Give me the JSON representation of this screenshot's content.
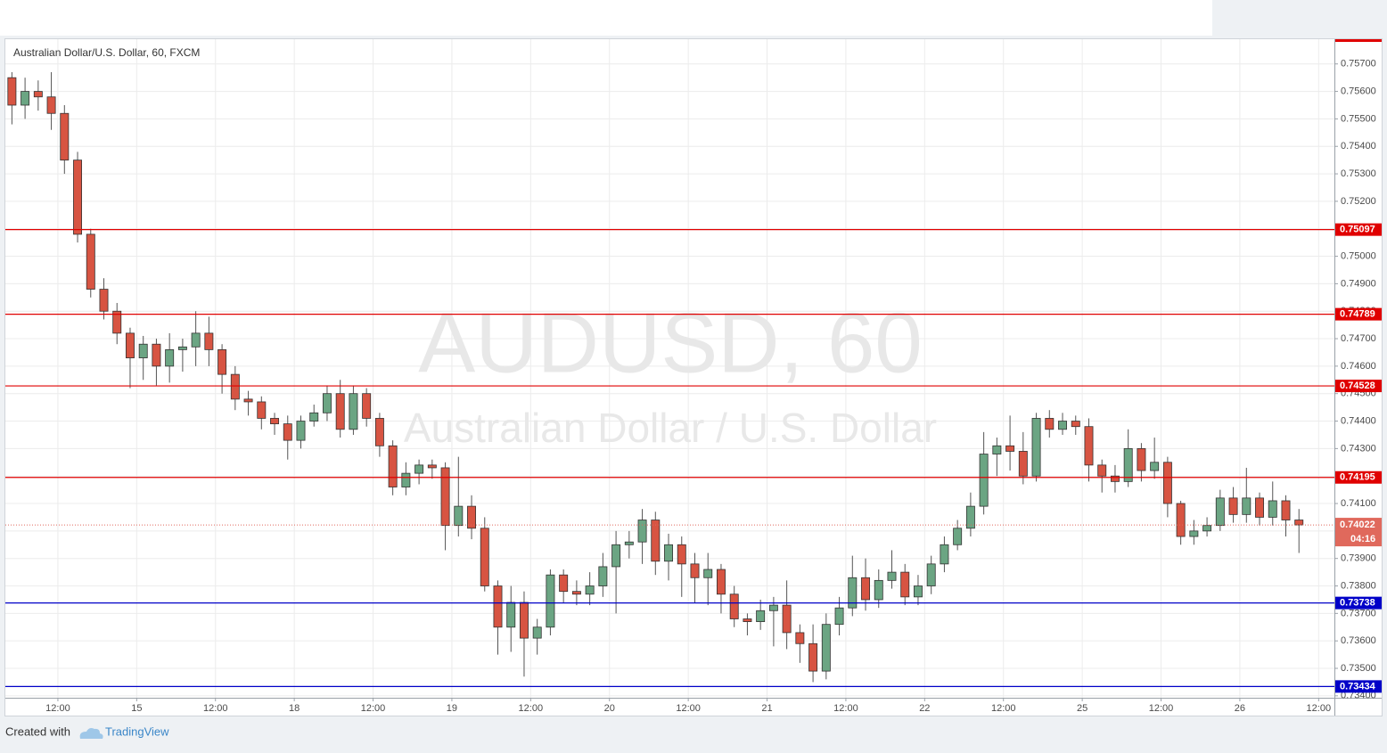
{
  "chart_data": {
    "type": "candlestick",
    "title": "Australian Dollar/U.S. Dollar, 60, FXCM",
    "watermark": "AUDUSD, 60",
    "watermark_subtitle": "Australian Dollar / U.S. Dollar",
    "x": [
      -7,
      -5,
      -3,
      -1,
      1,
      3,
      5,
      7,
      9,
      11,
      13,
      15,
      17,
      19,
      21,
      23,
      25,
      27,
      29,
      31,
      33,
      35,
      37,
      39,
      41,
      43,
      45,
      47,
      49,
      51,
      53,
      55,
      57,
      59,
      61,
      63,
      65,
      67,
      69,
      71,
      73,
      75,
      77,
      79,
      81,
      83,
      85,
      87,
      89,
      91,
      93,
      95,
      97,
      99,
      101,
      103,
      105,
      107,
      109,
      111,
      113,
      115,
      117,
      119,
      121,
      123,
      125,
      127,
      129,
      131,
      133,
      135,
      137,
      139,
      141,
      143,
      145,
      147,
      149,
      151,
      153,
      155,
      157,
      159,
      161,
      163,
      165,
      167,
      169,
      171,
      173,
      175,
      177,
      179,
      181,
      183,
      185,
      187,
      189
    ],
    "open": [
      0.7565,
      0.7555,
      0.756,
      0.7558,
      0.7552,
      0.7535,
      0.7508,
      0.7488,
      0.748,
      0.7472,
      0.7463,
      0.7468,
      0.746,
      0.7466,
      0.7467,
      0.7472,
      0.7466,
      0.7457,
      0.7448,
      0.7447,
      0.7441,
      0.7439,
      0.7433,
      0.744,
      0.7443,
      0.745,
      0.7437,
      0.745,
      0.7441,
      0.7431,
      0.7416,
      0.7421,
      0.7424,
      0.7423,
      0.7402,
      0.7409,
      0.7401,
      0.738,
      0.7365,
      0.7374,
      0.7361,
      0.7365,
      0.7384,
      0.7378,
      0.7377,
      0.738,
      0.7387,
      0.7395,
      0.7396,
      0.7404,
      0.7389,
      0.7395,
      0.7388,
      0.7383,
      0.7386,
      0.7377,
      0.7368,
      0.7367,
      0.7371,
      0.7373,
      0.7363,
      0.7359,
      0.7349,
      0.7366,
      0.7372,
      0.7383,
      0.7375,
      0.7382,
      0.7385,
      0.7376,
      0.738,
      0.7388,
      0.7395,
      0.7401,
      0.7409,
      0.7428,
      0.7431,
      0.7429,
      0.742,
      0.7441,
      0.7437,
      0.744,
      0.7438,
      0.7424,
      0.742,
      0.7418,
      0.743,
      0.7422,
      0.7425,
      0.741,
      0.7398,
      0.74,
      0.7402,
      0.7412,
      0.7406,
      0.7412,
      0.7405,
      0.7411,
      0.7404
    ],
    "high": [
      0.7567,
      0.7565,
      0.7564,
      0.7567,
      0.7555,
      0.7538,
      0.751,
      0.7492,
      0.7483,
      0.7474,
      0.7471,
      0.747,
      0.7472,
      0.747,
      0.748,
      0.7478,
      0.7468,
      0.746,
      0.7451,
      0.7449,
      0.7443,
      0.7442,
      0.7442,
      0.7446,
      0.7453,
      0.7455,
      0.7453,
      0.7452,
      0.7443,
      0.7433,
      0.7425,
      0.7426,
      0.7426,
      0.7425,
      0.7427,
      0.7413,
      0.7405,
      0.7382,
      0.738,
      0.7378,
      0.7368,
      0.7386,
      0.7386,
      0.7382,
      0.7385,
      0.7392,
      0.74,
      0.74,
      0.7408,
      0.7407,
      0.7399,
      0.7398,
      0.7392,
      0.7392,
      0.7388,
      0.738,
      0.737,
      0.7375,
      0.7376,
      0.7382,
      0.7366,
      0.7366,
      0.737,
      0.7376,
      0.7391,
      0.739,
      0.7386,
      0.7393,
      0.7388,
      0.7384,
      0.7391,
      0.7398,
      0.7404,
      0.7414,
      0.7436,
      0.7434,
      0.7442,
      0.7436,
      0.7443,
      0.7444,
      0.7443,
      0.7442,
      0.7441,
      0.7426,
      0.7424,
      0.7437,
      0.7432,
      0.7434,
      0.7427,
      0.7411,
      0.7404,
      0.7405,
      0.7415,
      0.7416,
      0.7423,
      0.7414,
      0.7418,
      0.7413,
      0.7408
    ],
    "low": [
      0.7548,
      0.755,
      0.7553,
      0.7546,
      0.753,
      0.7505,
      0.7485,
      0.7477,
      0.7468,
      0.7452,
      0.7455,
      0.7453,
      0.7454,
      0.7458,
      0.746,
      0.746,
      0.745,
      0.7444,
      0.7442,
      0.7437,
      0.7435,
      0.7426,
      0.743,
      0.7438,
      0.744,
      0.7434,
      0.7435,
      0.7438,
      0.7427,
      0.7413,
      0.7413,
      0.7417,
      0.7419,
      0.7393,
      0.7398,
      0.7397,
      0.7378,
      0.7355,
      0.7356,
      0.7347,
      0.7355,
      0.7362,
      0.7374,
      0.7373,
      0.7373,
      0.7376,
      0.737,
      0.739,
      0.7388,
      0.7384,
      0.7382,
      0.7376,
      0.7374,
      0.7373,
      0.737,
      0.7365,
      0.7362,
      0.7364,
      0.7358,
      0.7357,
      0.7352,
      0.7345,
      0.7346,
      0.7362,
      0.7369,
      0.7371,
      0.7372,
      0.7379,
      0.7373,
      0.7373,
      0.7377,
      0.7385,
      0.7393,
      0.7398,
      0.7406,
      0.742,
      0.7422,
      0.7417,
      0.7418,
      0.7434,
      0.7435,
      0.7435,
      0.7418,
      0.7414,
      0.7414,
      0.7416,
      0.7418,
      0.7419,
      0.7405,
      0.7395,
      0.7395,
      0.7398,
      0.74,
      0.7403,
      0.7403,
      0.7402,
      0.7402,
      0.7398,
      0.7392
    ],
    "close": [
      0.7555,
      0.756,
      0.7558,
      0.7552,
      0.7535,
      0.7508,
      0.7488,
      0.748,
      0.7472,
      0.7463,
      0.7468,
      0.746,
      0.7466,
      0.7467,
      0.7472,
      0.7466,
      0.7457,
      0.7448,
      0.7447,
      0.7441,
      0.7439,
      0.7433,
      0.744,
      0.7443,
      0.745,
      0.7437,
      0.745,
      0.7441,
      0.7431,
      0.7416,
      0.7421,
      0.7424,
      0.7423,
      0.7402,
      0.7409,
      0.7401,
      0.738,
      0.7365,
      0.7374,
      0.7361,
      0.7365,
      0.7384,
      0.7378,
      0.7377,
      0.738,
      0.7387,
      0.7395,
      0.7396,
      0.7404,
      0.7389,
      0.7395,
      0.7388,
      0.7383,
      0.7386,
      0.7377,
      0.7368,
      0.7367,
      0.7371,
      0.7373,
      0.7363,
      0.7359,
      0.7349,
      0.7366,
      0.7372,
      0.7383,
      0.7375,
      0.7382,
      0.7385,
      0.7376,
      0.738,
      0.7388,
      0.7395,
      0.7401,
      0.7409,
      0.7428,
      0.7431,
      0.7429,
      0.742,
      0.7441,
      0.7437,
      0.744,
      0.7438,
      0.7424,
      0.742,
      0.7418,
      0.743,
      0.7422,
      0.7425,
      0.741,
      0.7398,
      0.74,
      0.7402,
      0.7412,
      0.7406,
      0.7412,
      0.7405,
      0.7411,
      0.7404,
      0.74022
    ],
    "up_color": "#6ba583",
    "down_color": "#d75442",
    "xlim": [
      -8,
      194.4
    ],
    "xticks": [
      {
        "value": 0,
        "label": "12:00"
      },
      {
        "value": 12,
        "label": "15"
      },
      {
        "value": 24,
        "label": "12:00"
      },
      {
        "value": 36,
        "label": "18"
      },
      {
        "value": 48,
        "label": "12:00"
      },
      {
        "value": 60,
        "label": "19"
      },
      {
        "value": 72,
        "label": "12:00"
      },
      {
        "value": 84,
        "label": "20"
      },
      {
        "value": 96,
        "label": "12:00"
      },
      {
        "value": 108,
        "label": "21"
      },
      {
        "value": 120,
        "label": "12:00"
      },
      {
        "value": 132,
        "label": "22"
      },
      {
        "value": 144,
        "label": "12:00"
      },
      {
        "value": 156,
        "label": "25"
      },
      {
        "value": 168,
        "label": "12:00"
      },
      {
        "value": 180,
        "label": "26"
      },
      {
        "value": 192,
        "label": "12:00"
      }
    ],
    "ylim": [
      0.73393,
      0.7579
    ],
    "yticks": [
      {
        "value": 0.734,
        "label": "0.73400"
      },
      {
        "value": 0.735,
        "label": "0.73500"
      },
      {
        "value": 0.736,
        "label": "0.73600"
      },
      {
        "value": 0.737,
        "label": "0.73700"
      },
      {
        "value": 0.738,
        "label": "0.73800"
      },
      {
        "value": 0.739,
        "label": "0.73900"
      },
      {
        "value": 0.74,
        "label": "0.74000"
      },
      {
        "value": 0.741,
        "label": "0.74100"
      },
      {
        "value": 0.742,
        "label": "0.74200"
      },
      {
        "value": 0.743,
        "label": "0.74300"
      },
      {
        "value": 0.744,
        "label": "0.74400"
      },
      {
        "value": 0.745,
        "label": "0.74500"
      },
      {
        "value": 0.746,
        "label": "0.74600"
      },
      {
        "value": 0.747,
        "label": "0.74700"
      },
      {
        "value": 0.748,
        "label": "0.74800"
      },
      {
        "value": 0.749,
        "label": "0.74900"
      },
      {
        "value": 0.75,
        "label": "0.75000"
      },
      {
        "value": 0.751,
        "label": "0.75100"
      },
      {
        "value": 0.752,
        "label": "0.75200"
      },
      {
        "value": 0.753,
        "label": "0.75300"
      },
      {
        "value": 0.754,
        "label": "0.75400"
      },
      {
        "value": 0.755,
        "label": "0.75500"
      },
      {
        "value": 0.756,
        "label": "0.75600"
      },
      {
        "value": 0.757,
        "label": "0.75700"
      }
    ],
    "grid": true,
    "levels": [
      {
        "value": 0.75097,
        "color": "#e00000"
      },
      {
        "value": 0.74789,
        "color": "#e00000"
      },
      {
        "value": 0.74528,
        "color": "#e00000"
      },
      {
        "value": 0.74195,
        "color": "#e00000"
      },
      {
        "value": 0.73738,
        "color": "#0000c8"
      },
      {
        "value": 0.73434,
        "color": "#0000c8"
      }
    ],
    "last_price": 0.74022,
    "last_price_color": "#e0695c",
    "countdown": "04:16"
  },
  "footer": {
    "created_with": "Created with",
    "brand": "TradingView"
  }
}
